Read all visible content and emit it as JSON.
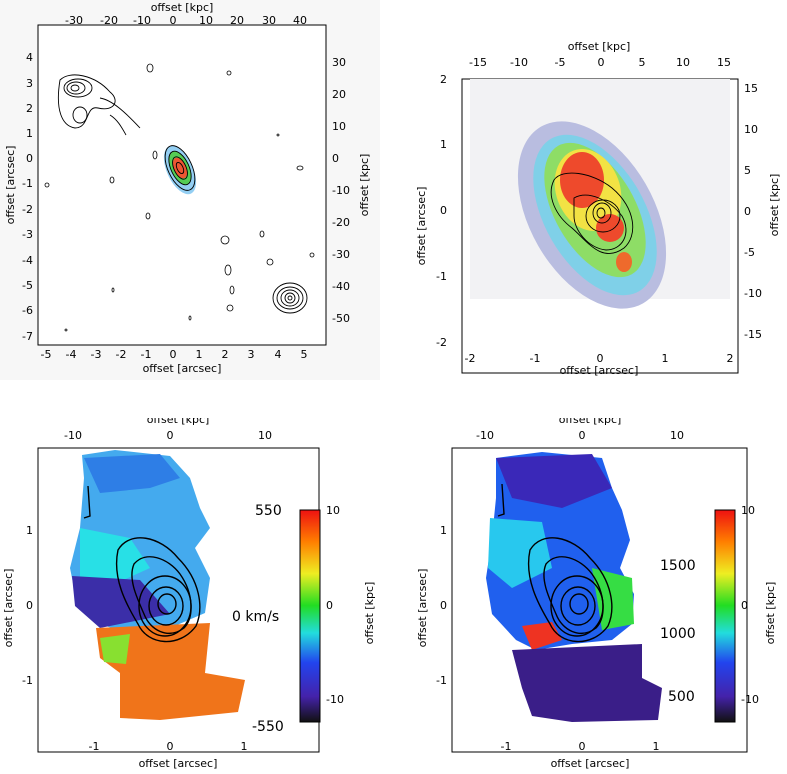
{
  "figure": {
    "panels": [
      {
        "id": "panel-a",
        "xlabel": "offset [arcsec]",
        "ylabel": "offset [arcsec]",
        "top_label": "offset [kpc]",
        "right_label": "offset [kpc]",
        "x_ticks": [
          "-5",
          "-4",
          "-3",
          "-2",
          "-1",
          "0",
          "1",
          "2",
          "3",
          "4",
          "5"
        ],
        "y_ticks": [
          "4",
          "3",
          "2",
          "1",
          "0",
          "-1",
          "-2",
          "-3",
          "-4",
          "-5",
          "-6",
          "-7"
        ],
        "top_ticks": [
          "-30",
          "-20",
          "-10",
          "0",
          "10",
          "20",
          "30",
          "40"
        ],
        "right_ticks": [
          "30",
          "20",
          "10",
          "0",
          "-10",
          "-20",
          "-30",
          "-40",
          "-50"
        ]
      },
      {
        "id": "panel-b",
        "xlabel": "offset [arcsec]",
        "ylabel": "offset [arcsec]",
        "top_label": "offset [kpc]",
        "right_label": "offset [kpc]",
        "x_ticks": [
          "-2",
          "-1",
          "0",
          "1",
          "2"
        ],
        "y_ticks": [
          "2",
          "1",
          "0",
          "-1",
          "-2"
        ],
        "top_ticks": [
          "-15",
          "-10",
          "-5",
          "0",
          "5",
          "10",
          "15"
        ],
        "right_ticks": [
          "15",
          "10",
          "5",
          "0",
          "-5",
          "-10",
          "-15"
        ]
      },
      {
        "id": "panel-c",
        "xlabel": "offset [arcsec]",
        "ylabel": "offset [arcsec]",
        "top_label": "offset [kpc]",
        "right_label": "offset [kpc]",
        "x_ticks": [
          "-1",
          "0",
          "1"
        ],
        "y_ticks": [
          "1",
          "0",
          "-1"
        ],
        "top_ticks": [
          "-10",
          "0",
          "10"
        ],
        "right_ticks": [
          "10",
          "0",
          "-10"
        ],
        "colorbar_labels": [
          "550",
          "0 km/s",
          "-550"
        ]
      },
      {
        "id": "panel-d",
        "xlabel": "offset [arcsec]",
        "ylabel": "offset [arcsec]",
        "top_label": "offset [kpc]",
        "right_label": "offset [kpc]",
        "x_ticks": [
          "-1",
          "0",
          "1"
        ],
        "y_ticks": [
          "1",
          "0",
          "-1"
        ],
        "top_ticks": [
          "-10",
          "0",
          "10"
        ],
        "right_ticks": [
          "10",
          "0",
          "-10"
        ],
        "colorbar_labels": [
          "1500",
          "1000",
          "500"
        ]
      }
    ]
  }
}
